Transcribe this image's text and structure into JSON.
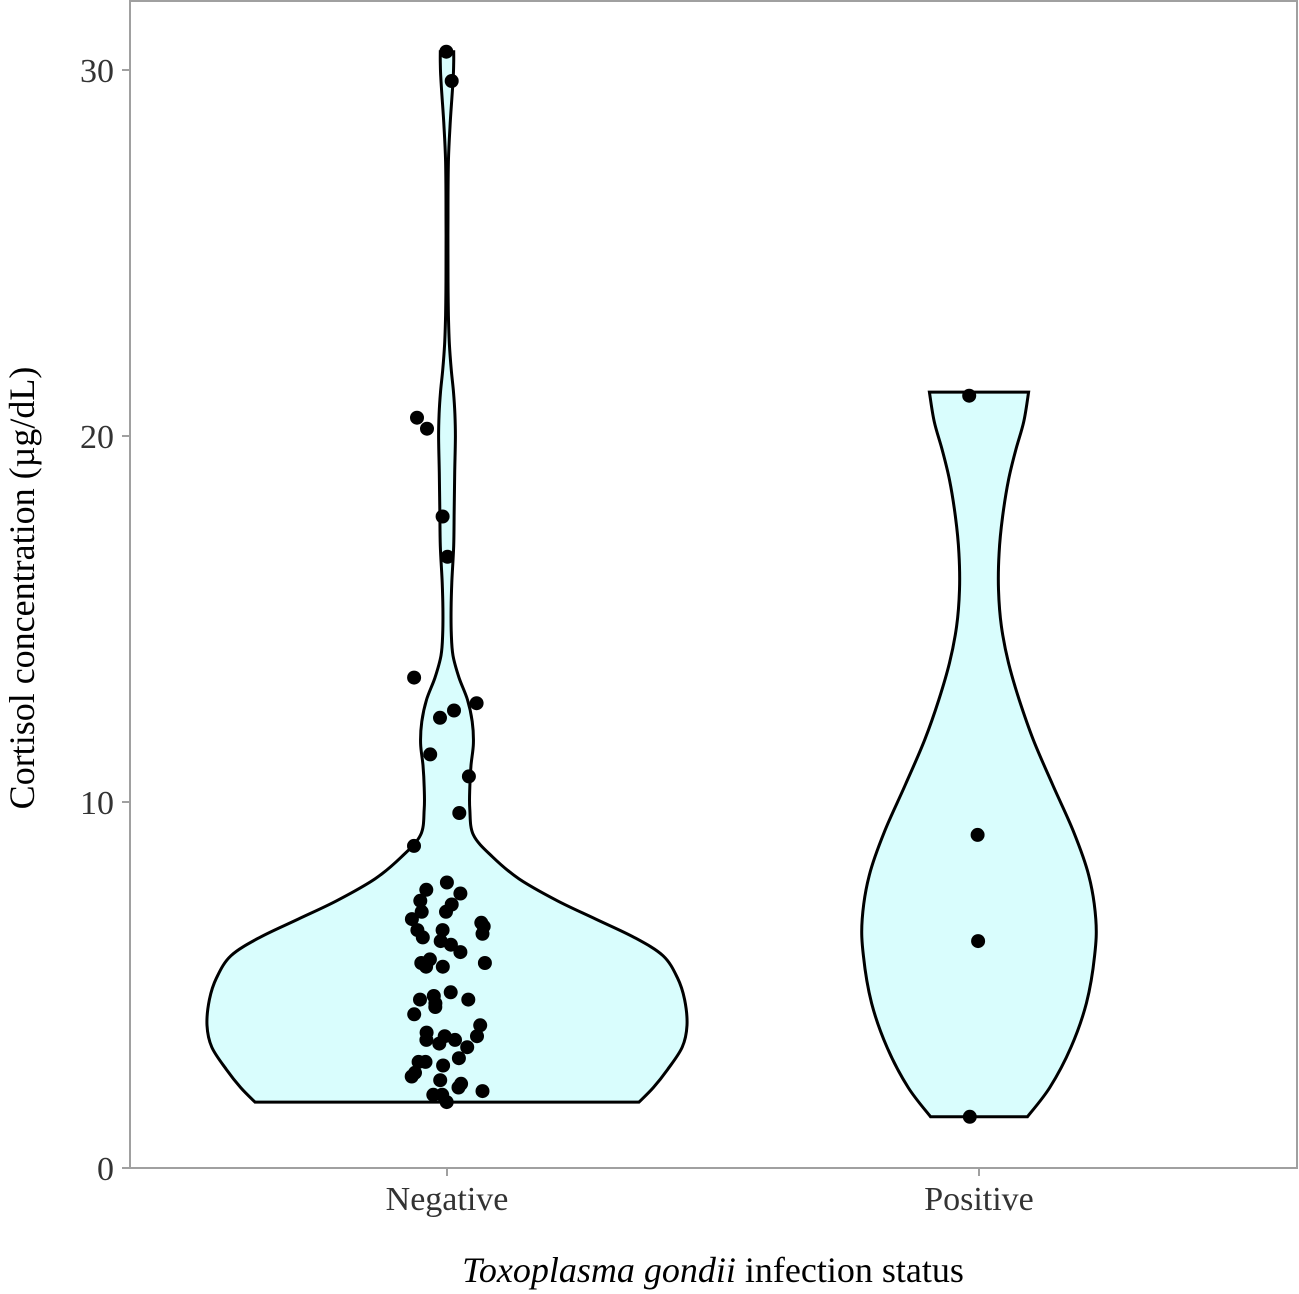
{
  "chart_data": {
    "type": "violin",
    "xlabel_italic": "Toxoplasma gondii",
    "xlabel_rest": " infection status",
    "ylabel": "Cortisol concentration (µg/dL)",
    "categories": [
      "Negative",
      "Positive"
    ],
    "ylim": [
      0,
      31.5
    ],
    "yticks": [
      0,
      10,
      20,
      30
    ],
    "grid": false,
    "colors": {
      "fill": "#d9fdfd",
      "stroke": "#000000",
      "points": "#000000",
      "frame": "#a0a0a0"
    },
    "series": [
      {
        "category": "Negative",
        "min": 1.8,
        "max": 30.5,
        "density": [
          [
            1.8,
            0.8
          ],
          [
            2.2,
            0.86
          ],
          [
            2.7,
            0.92
          ],
          [
            3.3,
            0.98
          ],
          [
            3.9,
            1.0
          ],
          [
            4.6,
            0.99
          ],
          [
            5.2,
            0.96
          ],
          [
            5.8,
            0.9
          ],
          [
            6.3,
            0.78
          ],
          [
            6.8,
            0.62
          ],
          [
            7.3,
            0.46
          ],
          [
            7.9,
            0.3
          ],
          [
            8.5,
            0.19
          ],
          [
            9.1,
            0.11
          ],
          [
            9.8,
            0.095
          ],
          [
            10.4,
            0.095
          ],
          [
            11.0,
            0.1
          ],
          [
            11.6,
            0.11
          ],
          [
            12.2,
            0.105
          ],
          [
            12.8,
            0.085
          ],
          [
            13.4,
            0.05
          ],
          [
            14.0,
            0.025
          ],
          [
            14.6,
            0.018
          ],
          [
            15.3,
            0.017
          ],
          [
            16.0,
            0.02
          ],
          [
            17.0,
            0.028
          ],
          [
            18.0,
            0.03
          ],
          [
            19.0,
            0.032
          ],
          [
            20.0,
            0.035
          ],
          [
            20.6,
            0.033
          ],
          [
            21.2,
            0.027
          ],
          [
            21.8,
            0.018
          ],
          [
            22.5,
            0.01
          ],
          [
            23.3,
            0.006
          ],
          [
            24.5,
            0.004
          ],
          [
            26.0,
            0.004
          ],
          [
            27.5,
            0.006
          ],
          [
            28.4,
            0.012
          ],
          [
            29.2,
            0.02
          ],
          [
            29.8,
            0.026
          ],
          [
            30.2,
            0.028
          ],
          [
            30.5,
            0.028
          ]
        ],
        "points": [
          30.5,
          29.7,
          20.5,
          20.2,
          17.8,
          16.7,
          13.4,
          12.7,
          12.5,
          12.3,
          11.3,
          10.7,
          9.7,
          8.8,
          7.8,
          7.6,
          7.5,
          7.3,
          7.2,
          7.0,
          7.0,
          6.8,
          6.7,
          6.6,
          6.5,
          6.5,
          6.4,
          6.3,
          6.2,
          6.1,
          5.9,
          5.7,
          5.6,
          5.6,
          5.5,
          5.5,
          4.8,
          4.7,
          4.6,
          4.6,
          4.5,
          4.4,
          4.2,
          3.9,
          3.7,
          3.6,
          3.6,
          3.5,
          3.5,
          3.4,
          3.3,
          3.0,
          2.9,
          2.9,
          2.8,
          2.6,
          2.5,
          2.4,
          2.3,
          2.2,
          2.1,
          2.0,
          2.0,
          1.8
        ]
      },
      {
        "category": "Positive",
        "min": 1.4,
        "max": 21.2,
        "density": [
          [
            1.4,
            0.41
          ],
          [
            2.2,
            0.6
          ],
          [
            3.3,
            0.78
          ],
          [
            4.5,
            0.91
          ],
          [
            5.8,
            0.98
          ],
          [
            6.8,
            0.99
          ],
          [
            8.0,
            0.93
          ],
          [
            9.2,
            0.8
          ],
          [
            10.5,
            0.62
          ],
          [
            11.7,
            0.46
          ],
          [
            12.8,
            0.34
          ],
          [
            13.8,
            0.25
          ],
          [
            14.8,
            0.19
          ],
          [
            15.8,
            0.165
          ],
          [
            16.8,
            0.17
          ],
          [
            17.8,
            0.2
          ],
          [
            18.8,
            0.25
          ],
          [
            19.6,
            0.31
          ],
          [
            20.4,
            0.38
          ],
          [
            21.2,
            0.42
          ]
        ],
        "points": [
          21.1,
          9.1,
          6.2,
          1.4
        ]
      }
    ]
  }
}
